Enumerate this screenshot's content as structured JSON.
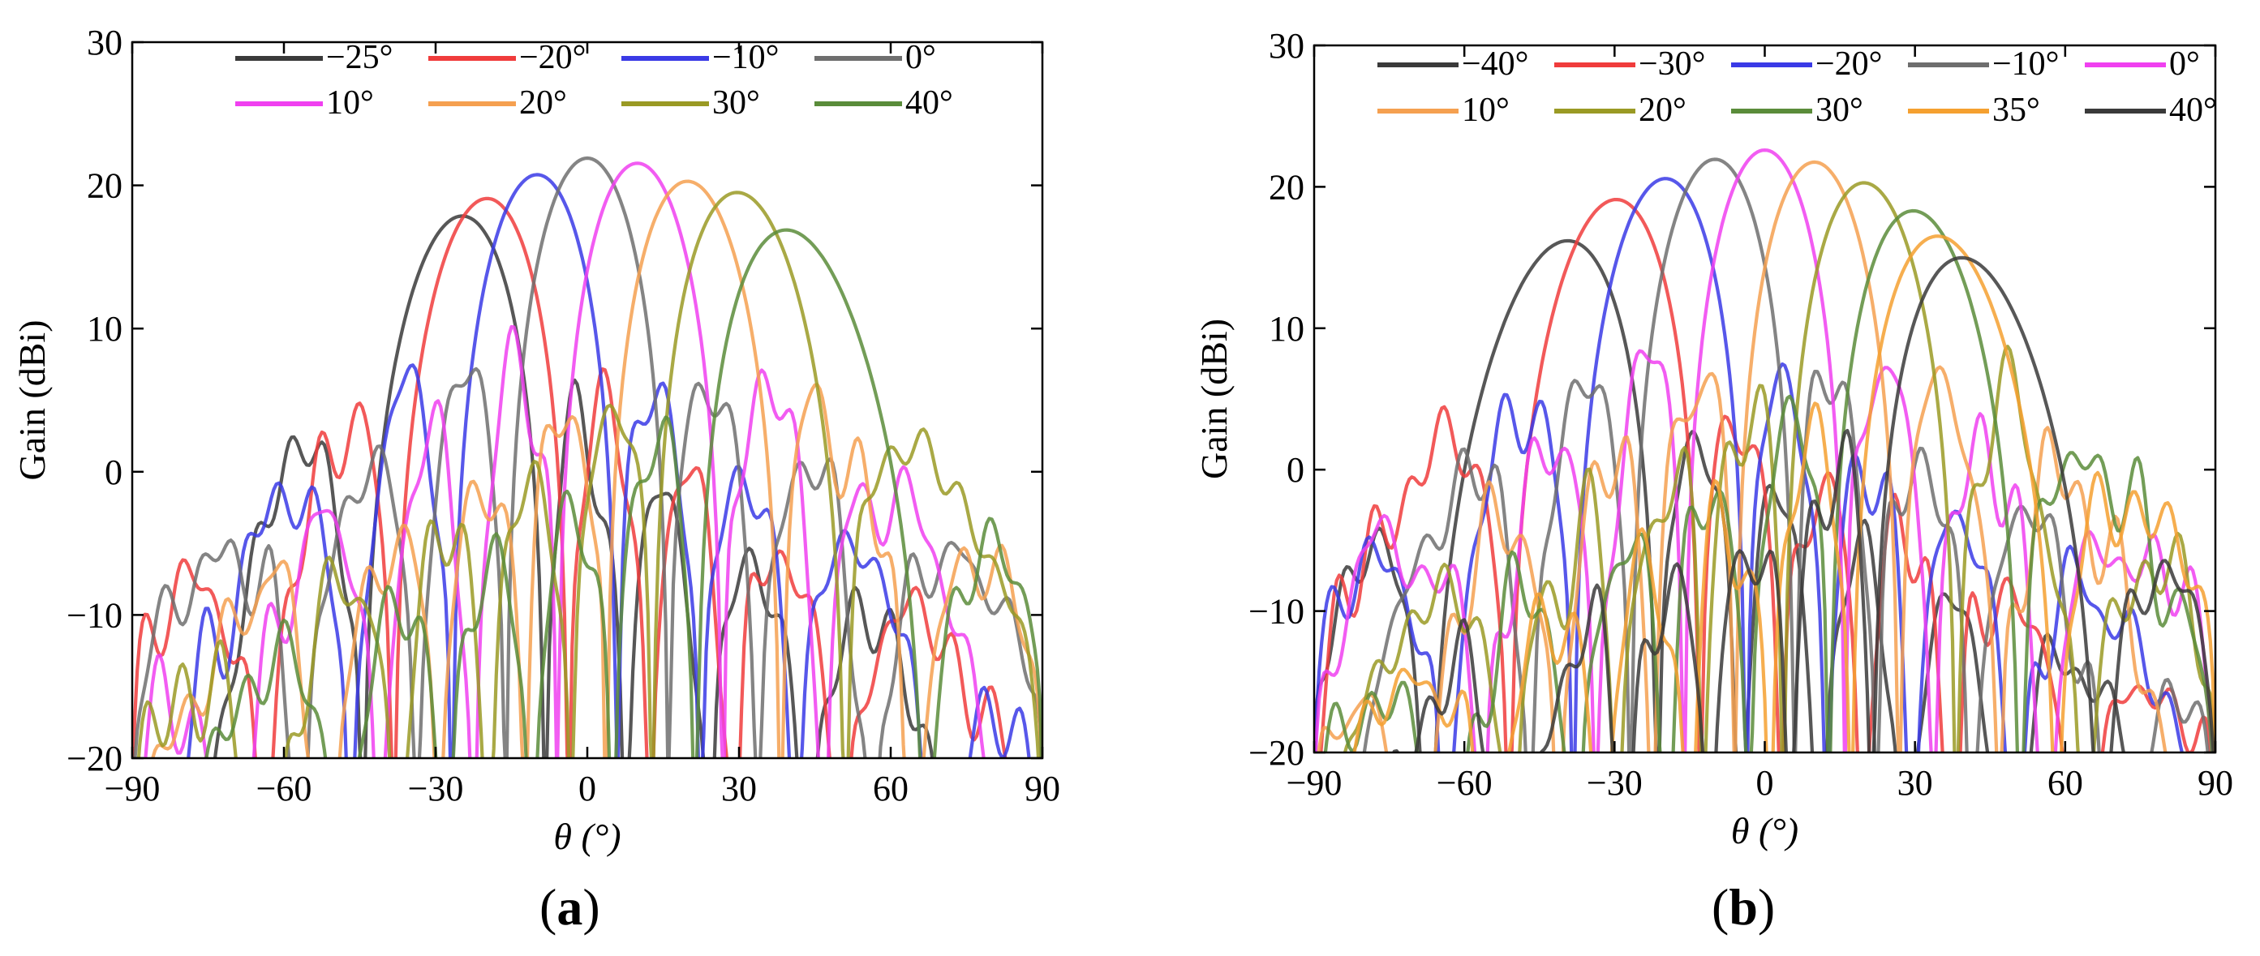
{
  "panels": {
    "a": {
      "label": "a"
    },
    "b": {
      "label": "b"
    }
  },
  "chart_data": [
    {
      "type": "line",
      "id": "a",
      "title": "",
      "xlabel": "θ (°)",
      "ylabel": "Gain (dBi)",
      "xlim": [
        -90,
        90
      ],
      "ylim": [
        -20,
        30
      ],
      "xticks": [
        -90,
        -60,
        -30,
        0,
        30,
        60,
        90
      ],
      "yticks": [
        -20,
        -10,
        0,
        10,
        20,
        30
      ],
      "xtick_labels": [
        "−90",
        "−60",
        "−30",
        "0",
        "30",
        "60",
        "90"
      ],
      "ytick_labels": [
        "−20",
        "−10",
        "0",
        "10",
        "20",
        "30"
      ],
      "legend_position": "top-center",
      "legend_columns": 4,
      "series": [
        {
          "name": "−25°",
          "steer": -25,
          "peak": 18.2,
          "color": "#3a3a3a"
        },
        {
          "name": "−20°",
          "steer": -20,
          "peak": 19.3,
          "color": "#f03c3c"
        },
        {
          "name": "−10°",
          "steer": -10,
          "peak": 20.8,
          "color": "#3a3ae6"
        },
        {
          "name": "0°",
          "steer": 0,
          "peak": 21.9,
          "color": "#6e6e6e"
        },
        {
          "name": "10°",
          "steer": 10,
          "peak": 21.6,
          "color": "#f040f0"
        },
        {
          "name": "20°",
          "steer": 20,
          "peak": 20.5,
          "color": "#f5a050"
        },
        {
          "name": "30°",
          "steer": 30,
          "peak": 20.0,
          "color": "#9a9a24"
        },
        {
          "name": "40°",
          "steer": 40,
          "peak": 17.8,
          "color": "#5a8c3a"
        }
      ]
    },
    {
      "type": "line",
      "id": "b",
      "title": "",
      "xlabel": "θ (°)",
      "ylabel": "Gain (dBi)",
      "xlim": [
        -90,
        90
      ],
      "ylim": [
        -20,
        30
      ],
      "xticks": [
        -90,
        -60,
        -30,
        0,
        30,
        60,
        90
      ],
      "yticks": [
        -20,
        -10,
        0,
        10,
        20,
        30
      ],
      "xtick_labels": [
        "−90",
        "−60",
        "−30",
        "0",
        "30",
        "60",
        "90"
      ],
      "ytick_labels": [
        "−20",
        "−10",
        "0",
        "10",
        "20",
        "30"
      ],
      "legend_position": "top-center",
      "legend_columns": 5,
      "series": [
        {
          "name": "−40°",
          "steer": -40,
          "peak": 17.1,
          "color": "#3a3a3a"
        },
        {
          "name": "−30°",
          "steer": -30,
          "peak": 19.6,
          "color": "#f03c3c"
        },
        {
          "name": "−20°",
          "steer": -20,
          "peak": 20.8,
          "color": "#3a3ae6"
        },
        {
          "name": "−10°",
          "steer": -10,
          "peak": 22.0,
          "color": "#6e6e6e"
        },
        {
          "name": "0°",
          "steer": 0,
          "peak": 22.6,
          "color": "#f040f0"
        },
        {
          "name": "10°",
          "steer": 10,
          "peak": 21.8,
          "color": "#f5a050"
        },
        {
          "name": "20°",
          "steer": 20,
          "peak": 20.5,
          "color": "#9a9a24"
        },
        {
          "name": "30°",
          "steer": 30,
          "peak": 18.8,
          "color": "#5a8c3a"
        },
        {
          "name": "35°",
          "steer": 35,
          "peak": 17.2,
          "color": "#f5a030"
        },
        {
          "name": "40°",
          "steer": 40,
          "peak": 15.9,
          "color": "#3a3a3a"
        }
      ]
    }
  ]
}
